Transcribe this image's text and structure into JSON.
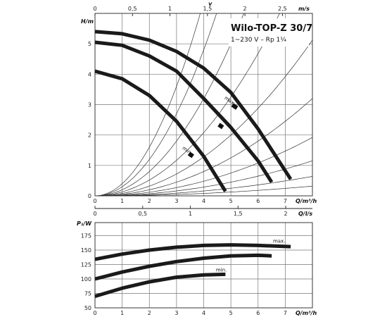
{
  "chart_data": [
    {
      "type": "line",
      "title": "Wilo-TOP-Z 30/7",
      "subtitle": "1~230 V – Rp 1¼",
      "xlabel": "Q/m³/h",
      "ylabel": "H/m",
      "top_axis_label": "v",
      "top_axis_unit": "m/s",
      "xlim": [
        0,
        8
      ],
      "ylim": [
        0,
        6
      ],
      "x_ticks": [
        "0",
        "1",
        "2",
        "3",
        "4",
        "5",
        "6",
        "7"
      ],
      "y_ticks": [
        "0",
        "1",
        "2",
        "3",
        "4",
        "5"
      ],
      "top_ticks": [
        "0",
        "0,5",
        "1",
        "1,5",
        "2",
        "2,5"
      ],
      "annotations": [
        "max.",
        "min."
      ],
      "series": [
        {
          "x": [
            0,
            1,
            2,
            3,
            4,
            5,
            6,
            7.2
          ],
          "y": [
            5.4,
            5.33,
            5.12,
            4.75,
            4.2,
            3.4,
            2.2,
            0.55
          ]
        },
        {
          "x": [
            0,
            1,
            2,
            3,
            4,
            5,
            6,
            6.5
          ],
          "y": [
            5.05,
            4.95,
            4.6,
            4.1,
            3.2,
            2.25,
            1.15,
            0.45
          ]
        },
        {
          "x": [
            0,
            1,
            2,
            3,
            4,
            4.8
          ],
          "y": [
            4.1,
            3.85,
            3.3,
            2.45,
            1.3,
            0.15
          ]
        }
      ],
      "system_curves_k": [
        0.4,
        0.3,
        0.2,
        0.13,
        0.08,
        0.05,
        0.03,
        0.018,
        0.01,
        0.005
      ]
    },
    {
      "type": "line",
      "xlabel": "Q/m³/h",
      "ylabel": "P₁/W",
      "top_axis_unit": "Q/l/s",
      "xlim": [
        0,
        8
      ],
      "ylim": [
        50,
        185
      ],
      "x_ticks": [
        "0",
        "1",
        "2",
        "3",
        "4",
        "5",
        "6",
        "7"
      ],
      "y_ticks": [
        "50",
        "75",
        "100",
        "125",
        "150",
        "175"
      ],
      "top_ticks": [
        "0",
        "0,5",
        "1",
        "1,5",
        "2"
      ],
      "annotations": [
        "max.",
        "min."
      ],
      "series": [
        {
          "x": [
            0,
            1,
            2,
            3,
            4,
            5,
            6,
            7.2
          ],
          "y": [
            134,
            143,
            150,
            155,
            158,
            159,
            158,
            156
          ]
        },
        {
          "x": [
            0,
            1,
            2,
            3,
            4,
            5,
            6,
            6.5
          ],
          "y": [
            100,
            112,
            122,
            130,
            136,
            140,
            141,
            140
          ]
        },
        {
          "x": [
            0,
            1,
            2,
            3,
            4,
            4.8
          ],
          "y": [
            70,
            84,
            95,
            103,
            107,
            108
          ]
        }
      ]
    }
  ]
}
